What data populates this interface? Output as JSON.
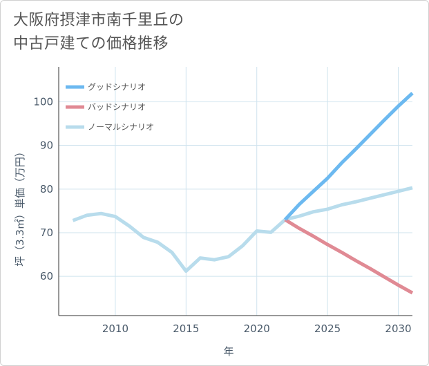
{
  "title": {
    "line1": "大阪府摂津市南千里丘の",
    "line2": "中古戸建ての価格推移"
  },
  "chart_data": {
    "type": "line",
    "title": "大阪府摂津市南千里丘の中古戸建ての価格推移",
    "xlabel": "年",
    "ylabel": "坪（3.3㎡）単価（万円）",
    "xlim": [
      2006,
      2031
    ],
    "ylim": [
      51,
      108
    ],
    "xticks": [
      2010,
      2015,
      2020,
      2025,
      2030
    ],
    "yticks": [
      60,
      70,
      80,
      90,
      100
    ],
    "legend_position": "top-left",
    "series": [
      {
        "name": "グッドシナリオ",
        "color": "#6cb9f0",
        "x": [
          2022,
          2023,
          2024,
          2025,
          2026,
          2027,
          2028,
          2029,
          2030,
          2031
        ],
        "y": [
          73.0,
          76.5,
          79.5,
          82.5,
          86.0,
          89.2,
          92.5,
          95.8,
          99.0,
          102.0
        ]
      },
      {
        "name": "バッドシナリオ",
        "color": "#e08a94",
        "x": [
          2022,
          2023,
          2024,
          2025,
          2026,
          2027,
          2028,
          2029,
          2030,
          2031
        ],
        "y": [
          73.0,
          71.0,
          69.2,
          67.3,
          65.5,
          63.6,
          61.8,
          59.9,
          58.0,
          56.2
        ]
      },
      {
        "name": "ノーマルシナリオ",
        "color": "#b8dcec",
        "x": [
          2007,
          2008,
          2009,
          2010,
          2011,
          2012,
          2013,
          2014,
          2015,
          2016,
          2017,
          2018,
          2019,
          2020,
          2021,
          2022,
          2023,
          2024,
          2025,
          2026,
          2027,
          2028,
          2029,
          2030,
          2031
        ],
        "y": [
          72.8,
          74.0,
          74.4,
          73.7,
          71.5,
          68.9,
          67.8,
          65.5,
          61.2,
          64.2,
          63.8,
          64.5,
          67.0,
          70.4,
          70.1,
          73.0,
          73.8,
          74.8,
          75.4,
          76.4,
          77.1,
          77.9,
          78.7,
          79.5,
          80.3
        ]
      }
    ]
  }
}
